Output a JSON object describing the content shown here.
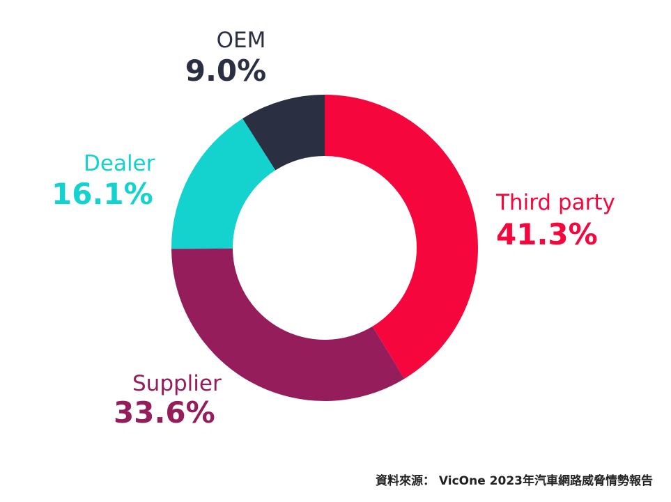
{
  "chart_data": {
    "type": "pie",
    "title": "",
    "donut": true,
    "legend": "none",
    "labels": [
      "Third party",
      "Supplier",
      "Dealer",
      "OEM"
    ],
    "values": [
      41.3,
      33.6,
      16.1,
      9.0
    ],
    "value_labels": [
      "41.3%",
      "33.6%",
      "16.1%",
      "9.0%"
    ],
    "colors": [
      "#f5073d",
      "#951d5b",
      "#14d3cf",
      "#2a3041"
    ]
  },
  "source_note": "資料來源： VicOne 2023年汽車網路威脅情勢報告"
}
